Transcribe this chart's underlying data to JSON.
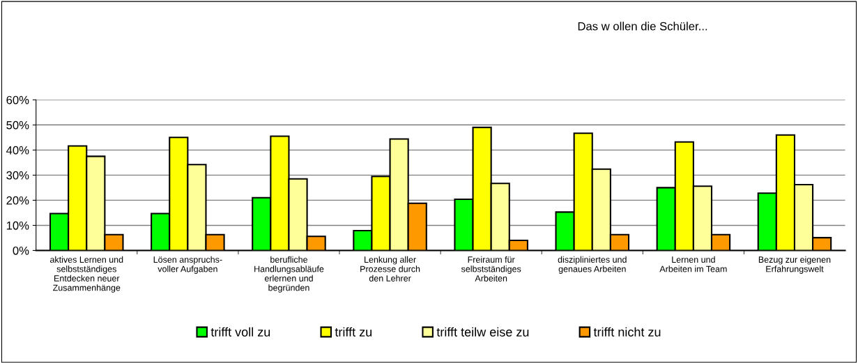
{
  "chart_data": {
    "type": "bar",
    "title": "Das w ollen die Schüler...",
    "categories": [
      "aktives Lernen und\nselbstständiges\nEntdecken neuer\nZusammenhänge",
      "Lösen anspruchs-\nvoller Aufgaben",
      "berufliche\nHandlungsabläufe\nerlernen und\nbegründen",
      "Lenkung aller\nProzesse durch\nden Lehrer",
      "Freiraum für\nselbstständiges\nArbeiten",
      "diszipliniertes und\ngenaues Arbeiten",
      "Lernen und\nArbeiten im Team",
      "Bezug zur eigenen\nErfahrungswelt"
    ],
    "series": [
      {
        "name": "trifft voll zu",
        "color": "#00ff00",
        "values": [
          14.7,
          14.7,
          21.0,
          7.9,
          20.4,
          15.3,
          25.0,
          22.8
        ]
      },
      {
        "name": "trifft zu",
        "color": "#ffff00",
        "values": [
          41.6,
          45.0,
          45.5,
          29.5,
          49.0,
          46.7,
          43.2,
          46.0
        ]
      },
      {
        "name": "trifft teilw eise zu",
        "color": "#ffff99",
        "values": [
          37.5,
          34.2,
          28.5,
          44.4,
          26.7,
          32.4,
          25.6,
          26.2
        ]
      },
      {
        "name": "trifft nicht zu",
        "color": "#ff9900",
        "values": [
          6.3,
          6.3,
          5.6,
          18.8,
          4.0,
          6.3,
          6.3,
          5.1
        ]
      }
    ],
    "ylim": [
      0,
      60
    ],
    "yticks": [
      {
        "value": 0,
        "label": "0%"
      },
      {
        "value": 10,
        "label": "10%"
      },
      {
        "value": 20,
        "label": "20%"
      },
      {
        "value": 30,
        "label": "30%"
      },
      {
        "value": 40,
        "label": "40%"
      },
      {
        "value": 50,
        "label": "50%"
      },
      {
        "value": 60,
        "label": "60%"
      }
    ],
    "grid": "y",
    "legend": "bottom"
  }
}
